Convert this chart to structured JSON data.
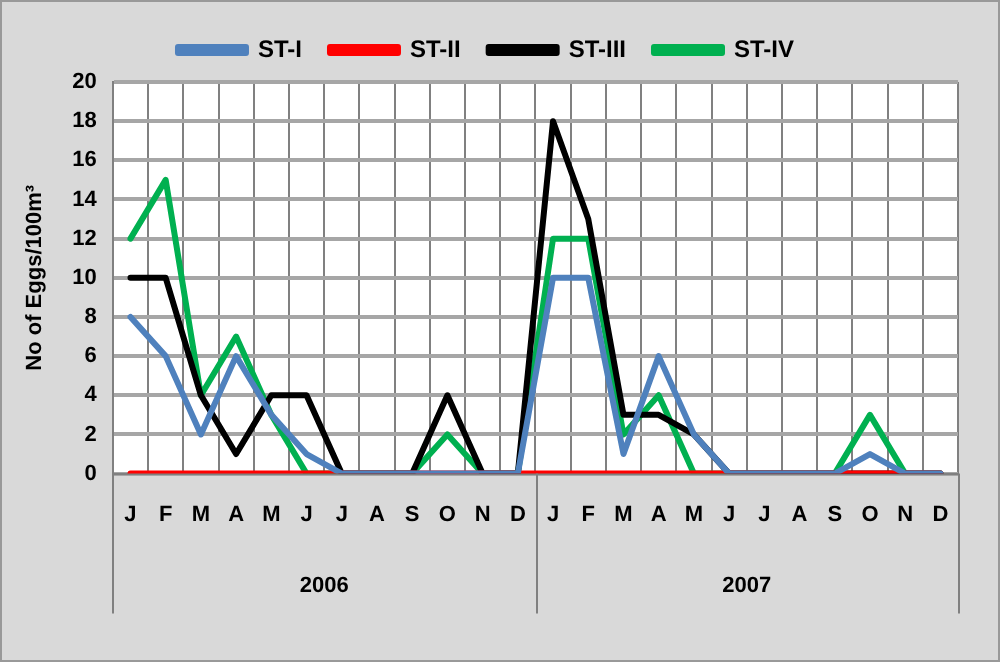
{
  "chart_data": {
    "type": "line",
    "ylabel": "No of Eggs/100m³",
    "categories": [
      "J",
      "F",
      "M",
      "A",
      "M",
      "J",
      "J",
      "A",
      "S",
      "O",
      "N",
      "D",
      "J",
      "F",
      "M",
      "A",
      "M",
      "J",
      "J",
      "A",
      "S",
      "O",
      "N",
      "D"
    ],
    "series": [
      {
        "name": "ST-I",
        "color": "#4f81bd",
        "values": [
          8,
          6,
          2,
          6,
          3,
          1,
          0,
          0,
          0,
          0,
          0,
          0,
          10,
          10,
          1,
          6,
          2,
          0,
          0,
          0,
          0,
          1,
          0,
          0
        ]
      },
      {
        "name": "ST-II",
        "color": "#ff0000",
        "values": [
          0,
          0,
          0,
          0,
          0,
          0,
          0,
          0,
          0,
          0,
          0,
          0,
          0,
          0,
          0,
          0,
          0,
          0,
          0,
          0,
          0,
          0,
          0,
          0
        ]
      },
      {
        "name": "ST-III",
        "color": "#000000",
        "values": [
          10,
          10,
          4,
          1,
          4,
          4,
          0,
          0,
          0,
          4,
          0,
          0,
          18,
          13,
          3,
          3,
          2,
          0,
          0,
          0,
          0,
          0,
          0,
          0
        ]
      },
      {
        "name": "ST-IV",
        "color": "#00b050",
        "values": [
          12,
          15,
          4,
          7,
          3,
          0,
          0,
          0,
          0,
          2,
          0,
          0,
          12,
          12,
          2,
          4,
          0,
          0,
          0,
          0,
          0,
          3,
          0,
          0
        ]
      }
    ],
    "ylim": [
      0,
      20
    ],
    "yticks": [
      0,
      2,
      4,
      6,
      8,
      10,
      12,
      14,
      16,
      18,
      20
    ],
    "annotations": [
      "2006",
      "2007"
    ],
    "grid": true,
    "legend": "top",
    "marker": "none",
    "line_style": "solid"
  }
}
